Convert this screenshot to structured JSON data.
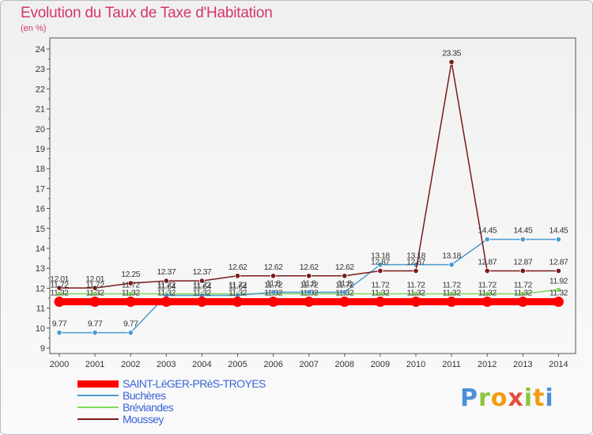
{
  "title": "Evolution du Taux de Taxe d'Habitation",
  "subtitle": "(en %)",
  "brand": "Proxiti",
  "chart_data": {
    "type": "line",
    "title": "Evolution du Taux de Taxe d'Habitation",
    "ylabel": "(en %)",
    "xlabel": "",
    "ylim": [
      9,
      24
    ],
    "grid": false,
    "legend_placement": "bottom-left",
    "x": [
      2000,
      2001,
      2002,
      2003,
      2004,
      2005,
      2006,
      2007,
      2008,
      2009,
      2010,
      2011,
      2012,
      2013,
      2014
    ],
    "y_ticks": [
      9,
      10,
      11,
      12,
      13,
      14,
      15,
      16,
      17,
      18,
      19,
      20,
      21,
      22,
      23,
      24
    ],
    "series": [
      {
        "name": "SAINT-LéGER-PRèS-TROYES",
        "color": "#ff0000",
        "values": [
          11.32,
          11.32,
          11.32,
          11.32,
          11.32,
          11.32,
          11.32,
          11.32,
          11.32,
          11.32,
          11.32,
          11.32,
          11.32,
          11.32,
          11.32
        ],
        "labels": [
          "11.32",
          "11.32",
          "11.32",
          "11.32",
          "11.32",
          "11.32",
          "11.32",
          "11.32",
          "11.32",
          "11.32",
          "11.32",
          "11.32",
          "11.32",
          "11.32",
          "11.32"
        ]
      },
      {
        "name": "Buchères",
        "color": "#4a9bd0",
        "values": [
          9.77,
          9.77,
          9.77,
          11.64,
          11.64,
          11.64,
          11.8,
          11.8,
          11.8,
          13.18,
          13.18,
          13.18,
          14.45,
          14.45,
          14.45
        ],
        "labels": [
          "9.77",
          "9.77",
          "9.77",
          "11.64",
          "11.64",
          "11.64",
          "11.8",
          "11.8",
          "11.8",
          "13.18",
          "13.18",
          "13.18",
          "14.45",
          "14.45",
          "14.45"
        ]
      },
      {
        "name": "Bréviandes",
        "color": "#7ed957",
        "values": [
          11.72,
          11.72,
          11.72,
          11.72,
          11.72,
          11.72,
          11.72,
          11.72,
          11.72,
          11.72,
          11.72,
          11.72,
          11.72,
          11.72,
          11.92
        ],
        "labels": [
          "11.72",
          "11.72",
          "11.72",
          "11.72",
          "11.72",
          "11.72",
          "11.72",
          "11.72",
          "11.72",
          "11.72",
          "11.72",
          "11.72",
          "11.72",
          "11.72",
          "11.92"
        ]
      },
      {
        "name": "Moussey",
        "color": "#7a1a1a",
        "values": [
          12.01,
          12.01,
          12.25,
          12.37,
          12.37,
          12.62,
          12.62,
          12.62,
          12.62,
          12.87,
          12.87,
          23.35,
          12.87,
          12.87,
          12.87
        ],
        "labels": [
          "12.01",
          "12.01",
          "12.25",
          "12.37",
          "12.37",
          "12.62",
          "12.62",
          "12.62",
          "12.62",
          "12.87",
          "12.87",
          "23.35",
          "12.87",
          "12.87",
          "12.87"
        ]
      }
    ]
  }
}
